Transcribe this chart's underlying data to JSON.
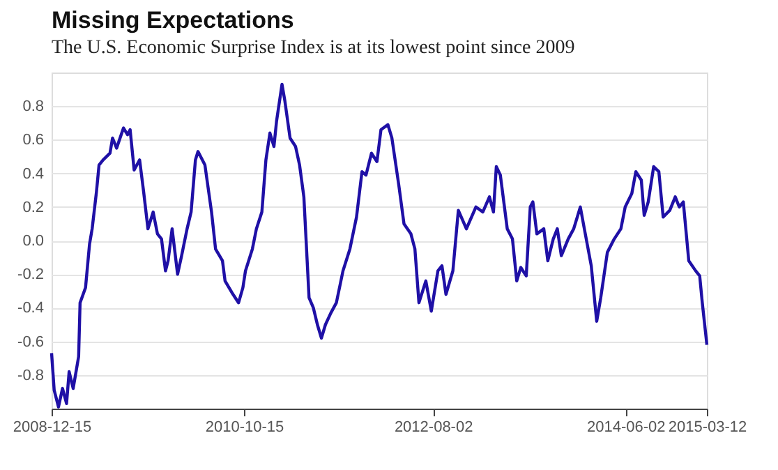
{
  "chart_data": {
    "type": "line",
    "title": "Missing Expectations",
    "subtitle": "The U.S. Economic Surprise Index is at its lowest point since 2009",
    "x": [
      "2008-12-15",
      "2008-12-24",
      "2009-01-08",
      "2009-01-22",
      "2009-02-05",
      "2009-02-14",
      "2009-02-28",
      "2009-03-19",
      "2009-03-24",
      "2009-04-12",
      "2009-04-26",
      "2009-05-05",
      "2009-05-20",
      "2009-05-29",
      "2009-06-12",
      "2009-07-06",
      "2009-07-15",
      "2009-07-29",
      "2009-08-22",
      "2009-09-05",
      "2009-09-14",
      "2009-09-28",
      "2009-10-17",
      "2009-10-31",
      "2009-11-15",
      "2009-12-03",
      "2009-12-18",
      "2010-01-01",
      "2010-01-15",
      "2010-01-24",
      "2010-02-07",
      "2010-02-26",
      "2010-03-12",
      "2010-03-31",
      "2010-04-14",
      "2010-04-29",
      "2010-05-08",
      "2010-06-01",
      "2010-06-24",
      "2010-07-08",
      "2010-08-01",
      "2010-08-10",
      "2010-09-03",
      "2010-09-26",
      "2010-10-11",
      "2010-10-20",
      "2010-11-13",
      "2010-11-27",
      "2010-12-16",
      "2010-12-30",
      "2011-01-13",
      "2011-01-27",
      "2011-02-05",
      "2011-02-24",
      "2011-03-06",
      "2011-03-24",
      "2011-04-12",
      "2011-04-26",
      "2011-05-11",
      "2011-05-29",
      "2011-06-13",
      "2011-06-27",
      "2011-07-11",
      "2011-07-25",
      "2011-08-13",
      "2011-09-01",
      "2011-09-24",
      "2011-10-18",
      "2011-11-10",
      "2011-11-29",
      "2011-12-13",
      "2012-01-01",
      "2012-01-20",
      "2012-02-03",
      "2012-02-27",
      "2012-03-12",
      "2012-04-05",
      "2012-04-23",
      "2012-05-17",
      "2012-05-31",
      "2012-06-14",
      "2012-07-08",
      "2012-07-27",
      "2012-08-19",
      "2012-09-02",
      "2012-09-16",
      "2012-10-10",
      "2012-10-29",
      "2012-11-26",
      "2012-12-29",
      "2013-01-22",
      "2013-02-14",
      "2013-02-28",
      "2013-03-10",
      "2013-03-24",
      "2013-04-17",
      "2013-05-05",
      "2013-05-20",
      "2013-06-03",
      "2013-06-22",
      "2013-07-06",
      "2013-07-15",
      "2013-07-29",
      "2013-08-22",
      "2013-09-05",
      "2013-09-24",
      "2013-10-08",
      "2013-10-22",
      "2013-11-15",
      "2013-12-04",
      "2013-12-27",
      "2014-01-10",
      "2014-02-03",
      "2014-02-22",
      "2014-03-08",
      "2014-03-31",
      "2014-04-24",
      "2014-05-17",
      "2014-06-01",
      "2014-06-24",
      "2014-07-08",
      "2014-07-27",
      "2014-08-06",
      "2014-08-20",
      "2014-09-08",
      "2014-09-26",
      "2014-10-11",
      "2014-11-03",
      "2014-11-22",
      "2014-12-06",
      "2014-12-20",
      "2015-01-08",
      "2015-02-01",
      "2015-02-15",
      "2015-02-24",
      "2015-03-12"
    ],
    "series": [
      {
        "color": "#1f10a6",
        "values": [
          -0.67,
          -0.89,
          -0.99,
          -0.88,
          -0.97,
          -0.78,
          -0.88,
          -0.69,
          -0.37,
          -0.28,
          -0.02,
          0.07,
          0.29,
          0.45,
          0.48,
          0.52,
          0.61,
          0.55,
          0.67,
          0.63,
          0.66,
          0.42,
          0.48,
          0.29,
          0.07,
          0.17,
          0.04,
          0.01,
          -0.18,
          -0.12,
          0.07,
          -0.2,
          -0.09,
          0.07,
          0.17,
          0.48,
          0.53,
          0.45,
          0.17,
          -0.05,
          -0.12,
          -0.24,
          -0.31,
          -0.37,
          -0.28,
          -0.18,
          -0.05,
          0.07,
          0.17,
          0.48,
          0.64,
          0.56,
          0.71,
          0.93,
          0.83,
          0.61,
          0.56,
          0.45,
          0.26,
          -0.34,
          -0.4,
          -0.5,
          -0.58,
          -0.5,
          -0.43,
          -0.37,
          -0.18,
          -0.05,
          0.14,
          0.41,
          0.39,
          0.52,
          0.47,
          0.66,
          0.69,
          0.61,
          0.33,
          0.1,
          0.04,
          -0.05,
          -0.37,
          -0.24,
          -0.42,
          -0.18,
          -0.15,
          -0.32,
          -0.18,
          0.18,
          0.07,
          0.2,
          0.17,
          0.26,
          0.17,
          0.44,
          0.39,
          0.07,
          0.01,
          -0.24,
          -0.16,
          -0.21,
          0.2,
          0.23,
          0.04,
          0.07,
          -0.12,
          0.01,
          0.07,
          -0.09,
          0.01,
          0.07,
          0.2,
          0.07,
          -0.15,
          -0.48,
          -0.34,
          -0.07,
          0.01,
          0.07,
          0.2,
          0.28,
          0.41,
          0.36,
          0.15,
          0.23,
          0.44,
          0.41,
          0.14,
          0.18,
          0.26,
          0.2,
          0.23,
          -0.12,
          -0.18,
          -0.21,
          -0.37,
          -0.62
        ]
      }
    ],
    "xlim": [
      "2008-12-15",
      "2015-03-12"
    ],
    "xticks": [
      "2008-12-15",
      "2010-10-15",
      "2012-08-02",
      "2014-06-02",
      "2015-03-12"
    ],
    "ylim": [
      -1.0,
      1.0
    ],
    "yticks": [
      -0.8,
      -0.6,
      -0.4,
      -0.2,
      {
        "value": 0,
        "label": "0.0"
      },
      0.2,
      0.4,
      0.6,
      0.8
    ],
    "grid": "y",
    "line_style": "solid",
    "marker": "none"
  }
}
